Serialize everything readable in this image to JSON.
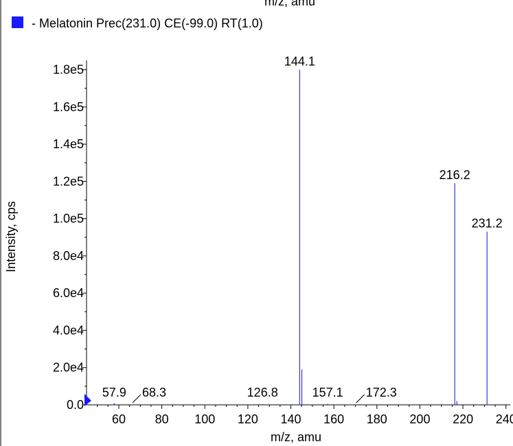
{
  "chart_data": {
    "type": "bar",
    "title": "",
    "top_caption": "m/z, amu",
    "legend": {
      "label": "- Melatonin Prec(231.0) CE(-99.0) RT(1.0)",
      "color": "#1a1aff",
      "placement": "top-left"
    },
    "xlabel": "m/z, amu",
    "ylabel": "Intensity, cps",
    "xlim": [
      45,
      242
    ],
    "ylim": [
      0,
      185000
    ],
    "x_ticks": [
      60,
      80,
      100,
      120,
      140,
      160,
      180,
      200,
      220,
      240
    ],
    "x_tick_labels": [
      "60",
      "80",
      "100",
      "120",
      "140",
      "160",
      "180",
      "200",
      "220",
      "240"
    ],
    "y_ticks": [
      0,
      20000,
      40000,
      60000,
      80000,
      100000,
      120000,
      140000,
      160000,
      180000
    ],
    "y_tick_labels": [
      "0.0",
      "2.0e4",
      "4.0e4",
      "6.0e4",
      "8.0e4",
      "1.0e5",
      "1.2e5",
      "1.4e5",
      "1.6e5",
      "1.8e5"
    ],
    "series": [
      {
        "color": "#3333dd",
        "peaks": [
          {
            "mz": 57.9,
            "intensity": 900
          },
          {
            "mz": 68.3,
            "intensity": 300
          },
          {
            "mz": 126.8,
            "intensity": 400
          },
          {
            "mz": 144.1,
            "intensity": 180000
          },
          {
            "mz": 145.1,
            "intensity": 19000
          },
          {
            "mz": 157.1,
            "intensity": 600
          },
          {
            "mz": 172.3,
            "intensity": 300
          },
          {
            "mz": 216.2,
            "intensity": 119000
          },
          {
            "mz": 217.2,
            "intensity": 2000
          },
          {
            "mz": 231.2,
            "intensity": 93000
          }
        ]
      }
    ],
    "peak_labels": [
      {
        "text": "144.1",
        "mz": 144.1,
        "intensity": 180000,
        "leader": false
      },
      {
        "text": "216.2",
        "mz": 216.2,
        "intensity": 119000,
        "leader": false
      },
      {
        "text": "231.2",
        "mz": 231.2,
        "intensity": 93000,
        "leader": false
      },
      {
        "text": "57.9",
        "mz": 57.9,
        "intensity": 900,
        "leader": false
      },
      {
        "text": "68.3",
        "mz": 68.3,
        "intensity": 300,
        "leader": true
      },
      {
        "text": "126.8",
        "mz": 126.8,
        "intensity": 400,
        "leader": false
      },
      {
        "text": "157.1",
        "mz": 157.1,
        "intensity": 600,
        "leader": false
      },
      {
        "text": "172.3",
        "mz": 172.3,
        "intensity": 300,
        "leader": true
      }
    ],
    "grid": false,
    "marker_color": "#1a1aff"
  }
}
